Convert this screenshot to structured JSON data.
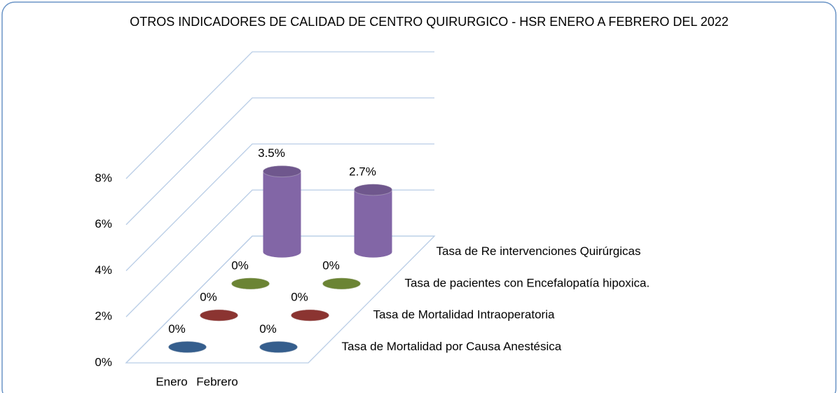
{
  "chart_data": {
    "type": "bar3d",
    "title": "OTROS INDICADORES DE CALIDAD DE CENTRO QUIRURGICO - HSR  ENERO A FEBRERO DEL 2022",
    "categories": [
      "Enero",
      "Febrero"
    ],
    "series": [
      {
        "name": "Tasa de Mortalidad por Causa Anestésica",
        "color": "#3e6ea6",
        "values": [
          0,
          0
        ],
        "value_labels": [
          "0%",
          "0%"
        ]
      },
      {
        "name": "Tasa de Mortalidad Intraoperatoria",
        "color": "#a33d3a",
        "values": [
          0,
          0
        ],
        "value_labels": [
          "0%",
          "0%"
        ]
      },
      {
        "name": "Tasa de pacientes con Encefalopatía hipoxica.",
        "color": "#7e9b3d",
        "values": [
          0,
          0
        ],
        "value_labels": [
          "0%",
          "0%"
        ]
      },
      {
        "name": "Tasa de Re intervenciones Quirúrgicas",
        "color": "#8266a6",
        "values": [
          3.5,
          2.7
        ],
        "value_labels": [
          "3.5%",
          "2.7%"
        ]
      }
    ],
    "ylim": [
      0,
      8
    ],
    "yticks": [
      {
        "value": 0,
        "label": "0%"
      },
      {
        "value": 2,
        "label": "2%"
      },
      {
        "value": 4,
        "label": "4%"
      },
      {
        "value": 6,
        "label": "6%"
      },
      {
        "value": 8,
        "label": "8%"
      }
    ],
    "grid": true
  }
}
